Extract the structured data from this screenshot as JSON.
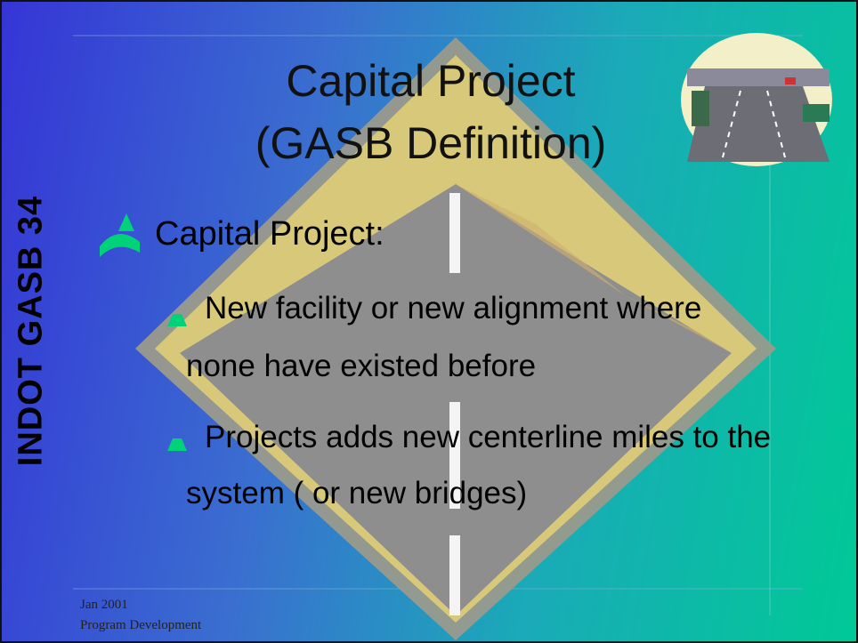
{
  "title": [
    "Capital Project",
    "(GASB Definition)"
  ],
  "side_label": "INDOT GASB 34",
  "bullets": [
    {
      "text": "Capital Project:",
      "sub": [
        [
          "New facility or new alignment where",
          "none have existed before"
        ],
        [
          "Projects adds new centerline miles to the",
          "system ( or new bridges)"
        ]
      ]
    }
  ],
  "footer": [
    "Jan 2001",
    "Program Development"
  ]
}
